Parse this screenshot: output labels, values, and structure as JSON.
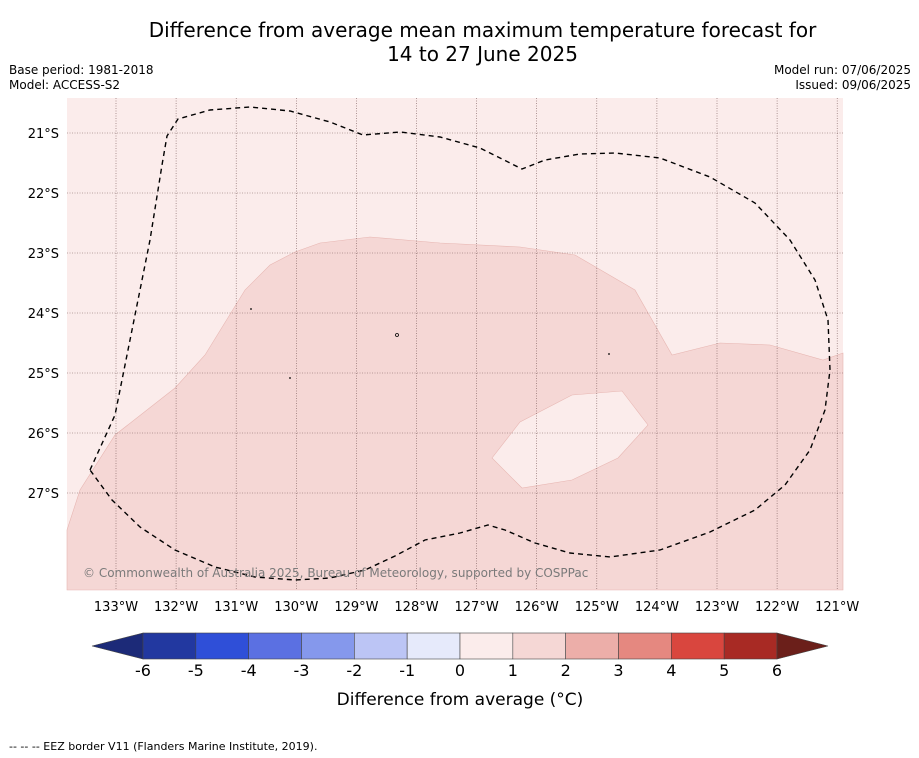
{
  "title": {
    "line1": "Difference from average mean maximum temperature forecast for",
    "line2": "14 to 27 June 2025"
  },
  "meta": {
    "base_period": "Base period: 1981-2018",
    "model": "Model: ACCESS-S2",
    "model_run": "Model run: 07/06/2025",
    "issued": "Issued: 09/06/2025"
  },
  "map": {
    "lat_labels": [
      "21°S",
      "22°S",
      "23°S",
      "24°S",
      "25°S",
      "26°S",
      "27°S"
    ],
    "lon_labels": [
      "133°W",
      "132°W",
      "131°W",
      "130°W",
      "129°W",
      "128°W",
      "127°W",
      "126°W",
      "125°W",
      "124°W",
      "123°W",
      "122°W",
      "121°W"
    ],
    "copyright": "© Commonwealth of Australia 2025, Bureau of Meteorology, supported by COSPPac",
    "colors": {
      "zero_to_one": "#fbeceb",
      "one_to_two": "#f5d7d5",
      "eez_line": "#000000"
    }
  },
  "colorbar": {
    "ticks": [
      "-6",
      "-5",
      "-4",
      "-3",
      "-2",
      "-1",
      "0",
      "1",
      "2",
      "3",
      "4",
      "5",
      "6"
    ],
    "label": "Difference from average (°C)",
    "colors": [
      "#2238a0",
      "#2f4fd8",
      "#5b70e2",
      "#8598ec",
      "#bcc5f5",
      "#e6eafb",
      "#fbeceb",
      "#f5d7d5",
      "#ecaea9",
      "#e58880",
      "#d9463e",
      "#a82a24"
    ],
    "low_color": "#1c2a78",
    "high_color": "#6b1f1a"
  },
  "footer": {
    "legend": "--  --  -- EEZ border V11 (Flanders Marine Institute, 2019)."
  }
}
